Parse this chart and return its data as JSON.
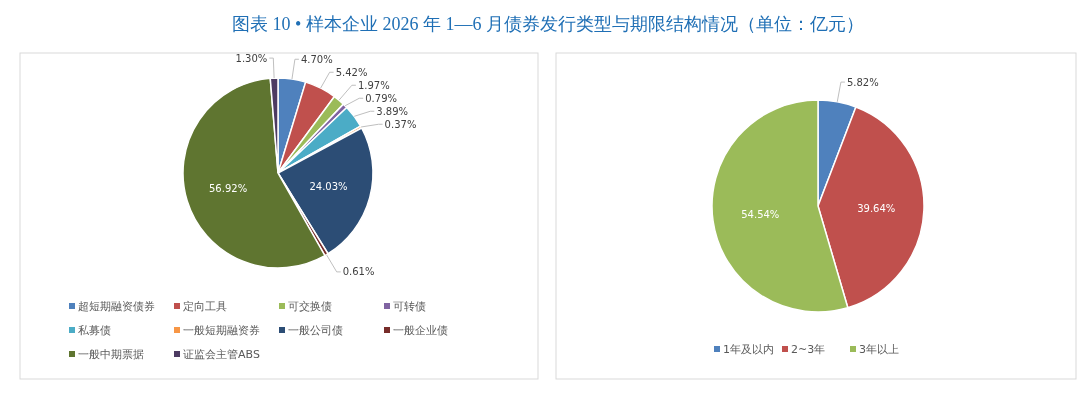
{
  "chart_data": [
    {
      "type": "pie",
      "title": "图表 10 • 样本企业 2026 年 1—6 月债券发行类型与期限结构情况（单位：亿元）",
      "categories": [
        "超短期融资债券",
        "定向工具",
        "可交换债",
        "可转债",
        "私募债",
        "一般短期融资券",
        "一般公司债",
        "一般企业债",
        "一般中期票据",
        "证监会主管ABS"
      ],
      "values": [
        4.7,
        5.42,
        1.97,
        0.79,
        3.89,
        0.37,
        24.03,
        0.61,
        56.92,
        1.3
      ],
      "colors": [
        "#4f81bd",
        "#c0504d",
        "#9bbb59",
        "#8064a2",
        "#4bacc6",
        "#f79646",
        "#2c4d75",
        "#772c2a",
        "#5f7530",
        "#4d3b62"
      ],
      "value_labels": [
        "4.70%",
        "5.42%",
        "1.97%",
        "0.79%",
        "3.89%",
        "0.37%",
        "24.03%",
        "0.61%",
        "56.92%",
        "1.30%"
      ],
      "legend": "bottom"
    },
    {
      "type": "pie",
      "categories": [
        "1年及以内",
        "2~3年",
        "3年以上"
      ],
      "values": [
        5.82,
        39.64,
        54.54
      ],
      "colors": [
        "#4f81bd",
        "#c0504d",
        "#9bbb59"
      ],
      "value_labels": [
        "5.82%",
        "39.64%",
        "54.54%"
      ],
      "legend": "bottom"
    }
  ]
}
